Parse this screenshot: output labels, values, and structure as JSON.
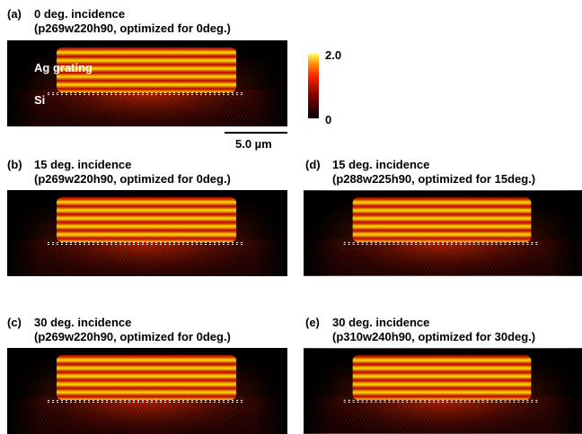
{
  "panels": [
    {
      "label": "(a)",
      "title": "0 deg. incidence",
      "subtitle": "(p269w220h90, optimized for 0deg.)",
      "upper_label": "Ag grating",
      "lower_label": "Si"
    },
    {
      "label": "(b)",
      "title": "15 deg. incidence",
      "subtitle": "(p269w220h90, optimized for 0deg.)"
    },
    {
      "label": "(d)",
      "title": "15 deg. incidence",
      "subtitle": "(p288w225h90, optimized for 15deg.)"
    },
    {
      "label": "(c)",
      "title": "30 deg. incidence",
      "subtitle": "(p269w220h90, optimized for 0deg.)"
    },
    {
      "label": "(e)",
      "title": "30 deg. incidence",
      "subtitle": "(p310w240h90, optimized for 30deg.)"
    }
  ],
  "colorbar": {
    "max_label": "2.0",
    "min_label": "0"
  },
  "scale_bar": "5.0 µm"
}
